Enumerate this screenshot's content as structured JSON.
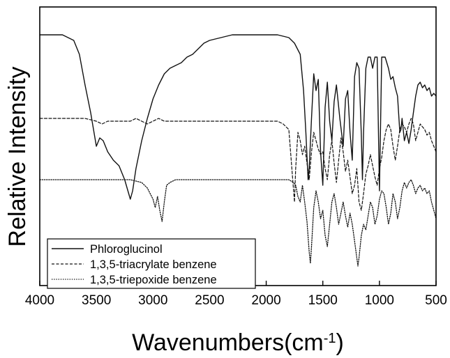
{
  "chart_data": {
    "type": "line",
    "title": "",
    "xlabel": "Wavenumbers(cm",
    "xlabel_sup": "-1",
    "xlabel_close": ")",
    "ylabel": "Relative Intensity",
    "xlim": [
      4000,
      500
    ],
    "x_reversed": true,
    "y_ticks_shown": false,
    "grid": false,
    "legend_position": "bottom-left",
    "x_ticks": [
      4000,
      3500,
      3000,
      2500,
      2000,
      1500,
      1000,
      500
    ],
    "x_tick_labels": [
      "4000",
      "3500",
      "3000",
      "2500",
      "2000",
      "1500",
      "1000",
      "500"
    ],
    "series": [
      {
        "name": "Phloroglucinol",
        "style": "solid",
        "color": "#111111",
        "points": [
          [
            4000,
            0.9
          ],
          [
            3800,
            0.9
          ],
          [
            3700,
            0.88
          ],
          [
            3650,
            0.83
          ],
          [
            3600,
            0.72
          ],
          [
            3550,
            0.62
          ],
          [
            3500,
            0.5
          ],
          [
            3470,
            0.53
          ],
          [
            3440,
            0.52
          ],
          [
            3400,
            0.48
          ],
          [
            3350,
            0.45
          ],
          [
            3300,
            0.43
          ],
          [
            3250,
            0.38
          ],
          [
            3200,
            0.31
          ],
          [
            3180,
            0.34
          ],
          [
            3150,
            0.42
          ],
          [
            3100,
            0.52
          ],
          [
            3050,
            0.6
          ],
          [
            3000,
            0.67
          ],
          [
            2950,
            0.72
          ],
          [
            2900,
            0.76
          ],
          [
            2850,
            0.78
          ],
          [
            2800,
            0.79
          ],
          [
            2750,
            0.8
          ],
          [
            2700,
            0.82
          ],
          [
            2650,
            0.83
          ],
          [
            2600,
            0.85
          ],
          [
            2550,
            0.87
          ],
          [
            2500,
            0.88
          ],
          [
            2400,
            0.89
          ],
          [
            2300,
            0.9
          ],
          [
            2200,
            0.9
          ],
          [
            2100,
            0.9
          ],
          [
            2000,
            0.9
          ],
          [
            1900,
            0.9
          ],
          [
            1800,
            0.89
          ],
          [
            1750,
            0.87
          ],
          [
            1700,
            0.83
          ],
          [
            1670,
            0.7
          ],
          [
            1650,
            0.55
          ],
          [
            1630,
            0.38
          ],
          [
            1620,
            0.42
          ],
          [
            1600,
            0.6
          ],
          [
            1580,
            0.76
          ],
          [
            1560,
            0.7
          ],
          [
            1540,
            0.74
          ],
          [
            1520,
            0.48
          ],
          [
            1500,
            0.36
          ],
          [
            1480,
            0.64
          ],
          [
            1460,
            0.73
          ],
          [
            1440,
            0.59
          ],
          [
            1420,
            0.52
          ],
          [
            1400,
            0.66
          ],
          [
            1380,
            0.72
          ],
          [
            1350,
            0.6
          ],
          [
            1320,
            0.5
          ],
          [
            1300,
            0.67
          ],
          [
            1280,
            0.7
          ],
          [
            1260,
            0.55
          ],
          [
            1240,
            0.45
          ],
          [
            1220,
            0.75
          ],
          [
            1200,
            0.8
          ],
          [
            1180,
            0.78
          ],
          [
            1160,
            0.54
          ],
          [
            1150,
            0.38
          ],
          [
            1140,
            0.55
          ],
          [
            1120,
            0.78
          ],
          [
            1100,
            0.82
          ],
          [
            1080,
            0.82
          ],
          [
            1060,
            0.78
          ],
          [
            1040,
            0.82
          ],
          [
            1020,
            0.82
          ],
          [
            1000,
            0.34
          ],
          [
            980,
            0.82
          ],
          [
            950,
            0.82
          ],
          [
            920,
            0.78
          ],
          [
            900,
            0.74
          ],
          [
            880,
            0.75
          ],
          [
            860,
            0.71
          ],
          [
            840,
            0.68
          ],
          [
            820,
            0.55
          ],
          [
            810,
            0.56
          ],
          [
            800,
            0.6
          ],
          [
            780,
            0.52
          ],
          [
            760,
            0.55
          ],
          [
            740,
            0.51
          ],
          [
            720,
            0.56
          ],
          [
            700,
            0.62
          ],
          [
            680,
            0.68
          ],
          [
            660,
            0.72
          ],
          [
            640,
            0.73
          ],
          [
            620,
            0.71
          ],
          [
            600,
            0.72
          ],
          [
            580,
            0.7
          ],
          [
            560,
            0.71
          ],
          [
            540,
            0.68
          ],
          [
            520,
            0.69
          ],
          [
            500,
            0.68
          ]
        ]
      },
      {
        "name": "1,3,5-triacrylate benzene",
        "style": "dashed",
        "color": "#111111",
        "points": [
          [
            4000,
            0.6
          ],
          [
            3800,
            0.6
          ],
          [
            3700,
            0.6
          ],
          [
            3600,
            0.6
          ],
          [
            3500,
            0.59
          ],
          [
            3450,
            0.58
          ],
          [
            3400,
            0.59
          ],
          [
            3300,
            0.59
          ],
          [
            3200,
            0.59
          ],
          [
            3150,
            0.6
          ],
          [
            3100,
            0.59
          ],
          [
            3050,
            0.58
          ],
          [
            3000,
            0.59
          ],
          [
            2950,
            0.6
          ],
          [
            2900,
            0.59
          ],
          [
            2800,
            0.59
          ],
          [
            2600,
            0.59
          ],
          [
            2400,
            0.59
          ],
          [
            2200,
            0.59
          ],
          [
            2000,
            0.59
          ],
          [
            1900,
            0.59
          ],
          [
            1850,
            0.58
          ],
          [
            1800,
            0.56
          ],
          [
            1760,
            0.35
          ],
          [
            1750,
            0.3
          ],
          [
            1740,
            0.42
          ],
          [
            1720,
            0.55
          ],
          [
            1700,
            0.52
          ],
          [
            1680,
            0.47
          ],
          [
            1660,
            0.5
          ],
          [
            1640,
            0.44
          ],
          [
            1620,
            0.38
          ],
          [
            1600,
            0.48
          ],
          [
            1580,
            0.55
          ],
          [
            1560,
            0.52
          ],
          [
            1540,
            0.49
          ],
          [
            1520,
            0.47
          ],
          [
            1500,
            0.48
          ],
          [
            1480,
            0.42
          ],
          [
            1460,
            0.38
          ],
          [
            1440,
            0.47
          ],
          [
            1420,
            0.52
          ],
          [
            1400,
            0.44
          ],
          [
            1380,
            0.37
          ],
          [
            1360,
            0.45
          ],
          [
            1340,
            0.53
          ],
          [
            1320,
            0.48
          ],
          [
            1300,
            0.41
          ],
          [
            1280,
            0.45
          ],
          [
            1260,
            0.39
          ],
          [
            1240,
            0.33
          ],
          [
            1220,
            0.36
          ],
          [
            1200,
            0.42
          ],
          [
            1180,
            0.3
          ],
          [
            1160,
            0.27
          ],
          [
            1140,
            0.33
          ],
          [
            1120,
            0.4
          ],
          [
            1100,
            0.43
          ],
          [
            1080,
            0.47
          ],
          [
            1060,
            0.43
          ],
          [
            1040,
            0.39
          ],
          [
            1020,
            0.36
          ],
          [
            1000,
            0.42
          ],
          [
            980,
            0.46
          ],
          [
            960,
            0.52
          ],
          [
            940,
            0.56
          ],
          [
            920,
            0.58
          ],
          [
            900,
            0.56
          ],
          [
            880,
            0.5
          ],
          [
            860,
            0.45
          ],
          [
            840,
            0.5
          ],
          [
            820,
            0.56
          ],
          [
            800,
            0.58
          ],
          [
            780,
            0.57
          ],
          [
            760,
            0.55
          ],
          [
            740,
            0.58
          ],
          [
            720,
            0.6
          ],
          [
            700,
            0.58
          ],
          [
            680,
            0.52
          ],
          [
            660,
            0.55
          ],
          [
            640,
            0.58
          ],
          [
            620,
            0.57
          ],
          [
            600,
            0.56
          ],
          [
            580,
            0.54
          ],
          [
            560,
            0.55
          ],
          [
            540,
            0.52
          ],
          [
            520,
            0.5
          ],
          [
            500,
            0.48
          ]
        ]
      },
      {
        "name": "1,3,5-triepoxide benzene",
        "style": "dotted",
        "color": "#111111",
        "points": [
          [
            4000,
            0.38
          ],
          [
            3800,
            0.38
          ],
          [
            3600,
            0.38
          ],
          [
            3400,
            0.38
          ],
          [
            3300,
            0.38
          ],
          [
            3200,
            0.38
          ],
          [
            3100,
            0.37
          ],
          [
            3050,
            0.35
          ],
          [
            3000,
            0.31
          ],
          [
            2980,
            0.28
          ],
          [
            2960,
            0.32
          ],
          [
            2940,
            0.27
          ],
          [
            2920,
            0.23
          ],
          [
            2900,
            0.3
          ],
          [
            2880,
            0.36
          ],
          [
            2850,
            0.37
          ],
          [
            2800,
            0.38
          ],
          [
            2600,
            0.38
          ],
          [
            2400,
            0.38
          ],
          [
            2200,
            0.38
          ],
          [
            2000,
            0.38
          ],
          [
            1900,
            0.38
          ],
          [
            1800,
            0.38
          ],
          [
            1760,
            0.37
          ],
          [
            1740,
            0.36
          ],
          [
            1720,
            0.32
          ],
          [
            1700,
            0.3
          ],
          [
            1680,
            0.36
          ],
          [
            1660,
            0.3
          ],
          [
            1640,
            0.23
          ],
          [
            1620,
            0.12
          ],
          [
            1610,
            0.08
          ],
          [
            1600,
            0.14
          ],
          [
            1580,
            0.28
          ],
          [
            1560,
            0.34
          ],
          [
            1540,
            0.3
          ],
          [
            1520,
            0.24
          ],
          [
            1500,
            0.27
          ],
          [
            1480,
            0.18
          ],
          [
            1460,
            0.14
          ],
          [
            1440,
            0.22
          ],
          [
            1420,
            0.3
          ],
          [
            1400,
            0.33
          ],
          [
            1380,
            0.28
          ],
          [
            1360,
            0.22
          ],
          [
            1340,
            0.26
          ],
          [
            1320,
            0.3
          ],
          [
            1300,
            0.25
          ],
          [
            1280,
            0.21
          ],
          [
            1260,
            0.26
          ],
          [
            1240,
            0.22
          ],
          [
            1220,
            0.16
          ],
          [
            1200,
            0.1
          ],
          [
            1190,
            0.07
          ],
          [
            1180,
            0.1
          ],
          [
            1160,
            0.18
          ],
          [
            1140,
            0.22
          ],
          [
            1120,
            0.2
          ],
          [
            1100,
            0.25
          ],
          [
            1080,
            0.3
          ],
          [
            1060,
            0.28
          ],
          [
            1040,
            0.22
          ],
          [
            1020,
            0.25
          ],
          [
            1000,
            0.31
          ],
          [
            980,
            0.34
          ],
          [
            960,
            0.33
          ],
          [
            940,
            0.28
          ],
          [
            920,
            0.22
          ],
          [
            900,
            0.26
          ],
          [
            880,
            0.33
          ],
          [
            860,
            0.3
          ],
          [
            840,
            0.24
          ],
          [
            820,
            0.28
          ],
          [
            800,
            0.34
          ],
          [
            780,
            0.37
          ],
          [
            760,
            0.35
          ],
          [
            740,
            0.37
          ],
          [
            720,
            0.38
          ],
          [
            700,
            0.36
          ],
          [
            680,
            0.33
          ],
          [
            660,
            0.35
          ],
          [
            640,
            0.36
          ],
          [
            620,
            0.34
          ],
          [
            600,
            0.35
          ],
          [
            580,
            0.33
          ],
          [
            560,
            0.34
          ],
          [
            540,
            0.3
          ],
          [
            520,
            0.27
          ],
          [
            500,
            0.24
          ]
        ]
      }
    ]
  }
}
